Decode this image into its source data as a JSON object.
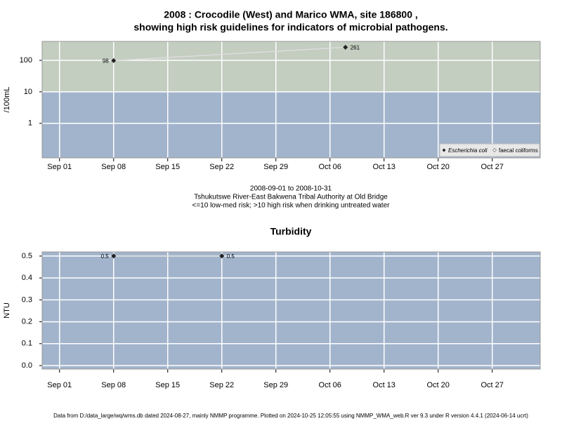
{
  "chart_data": [
    {
      "type": "line",
      "title": [
        "2008 : Crocodile (West) and Marico WMA, site 186800 ,",
        "showing high risk guidelines for indicators of microbial pathogens."
      ],
      "subtitle": [
        "2008-09-01 to 2008-10-31",
        "Tshukutswe River-East Bakwena Tribal Authority at Old Bridge",
        "<=10 low-med risk; >10 high risk when drinking untreated water"
      ],
      "ylabel": "/100mL",
      "log_scale": true,
      "x": [
        "2008-09-08",
        "2008-10-08"
      ],
      "series": [
        {
          "name": "Escherichia coli",
          "color": "#222222",
          "values": [
            98,
            261
          ]
        },
        {
          "name": "faecal coliforms",
          "color": "#ffffff",
          "values": [
            null,
            null
          ]
        }
      ],
      "xlim": [
        "2008-08-29T18:00:00Z",
        "2008-11-02T05:00:00Z"
      ],
      "xticks": [
        {
          "value": "2008-09-01",
          "label": "Sep 01"
        },
        {
          "value": "2008-09-08",
          "label": "Sep 08"
        },
        {
          "value": "2008-09-15",
          "label": "Sep 15"
        },
        {
          "value": "2008-09-22",
          "label": "Sep 22"
        },
        {
          "value": "2008-09-29",
          "label": "Sep 29"
        },
        {
          "value": "2008-10-06",
          "label": "Oct 06"
        },
        {
          "value": "2008-10-13",
          "label": "Oct 13"
        },
        {
          "value": "2008-10-20",
          "label": "Oct 20"
        },
        {
          "value": "2008-10-27",
          "label": "Oct 27"
        }
      ],
      "ylim": [
        0.08,
        400
      ],
      "yticks": [
        1,
        10,
        100
      ],
      "threshold": 10,
      "low_color": "#a2b4cc",
      "high_color": "#c3cdc0",
      "line_color": "#dddddd",
      "grid": true,
      "legend": "bottom-right"
    },
    {
      "type": "line",
      "title": [
        "Turbidity"
      ],
      "ylabel": "NTU",
      "log_scale": false,
      "x": [
        "2008-09-08",
        "2008-09-22"
      ],
      "series": [
        {
          "name": "Turbidity",
          "color": "#222222",
          "values": [
            0.5,
            0.5
          ]
        }
      ],
      "xlim": [
        "2008-08-29T18:00:00Z",
        "2008-11-02T05:00:00Z"
      ],
      "xticks": [
        {
          "value": "2008-09-01",
          "label": "Sep 01"
        },
        {
          "value": "2008-09-08",
          "label": "Sep 08"
        },
        {
          "value": "2008-09-15",
          "label": "Sep 15"
        },
        {
          "value": "2008-09-22",
          "label": "Sep 22"
        },
        {
          "value": "2008-09-29",
          "label": "Sep 29"
        },
        {
          "value": "2008-10-06",
          "label": "Oct 06"
        },
        {
          "value": "2008-10-13",
          "label": "Oct 13"
        },
        {
          "value": "2008-10-20",
          "label": "Oct 20"
        },
        {
          "value": "2008-10-27",
          "label": "Oct 27"
        }
      ],
      "ylim": [
        -0.016,
        0.519
      ],
      "yticks": [
        {
          "value": 0,
          "label": "0.0"
        },
        0.1,
        0.2,
        0.3,
        0.4,
        0.5
      ],
      "low_color": "#a2b4cc",
      "line_color": "#dddddd",
      "grid": true
    }
  ],
  "footer": "Data from D:/data_large/wq/wms.db dated 2024-08-27, mainly NMMP programme. Plotted on 2024-10-25 12:05:55 using NMMP_WMA_web.R ver 9.3 under R version 4.4.1 (2024-06-14 ucrt)"
}
